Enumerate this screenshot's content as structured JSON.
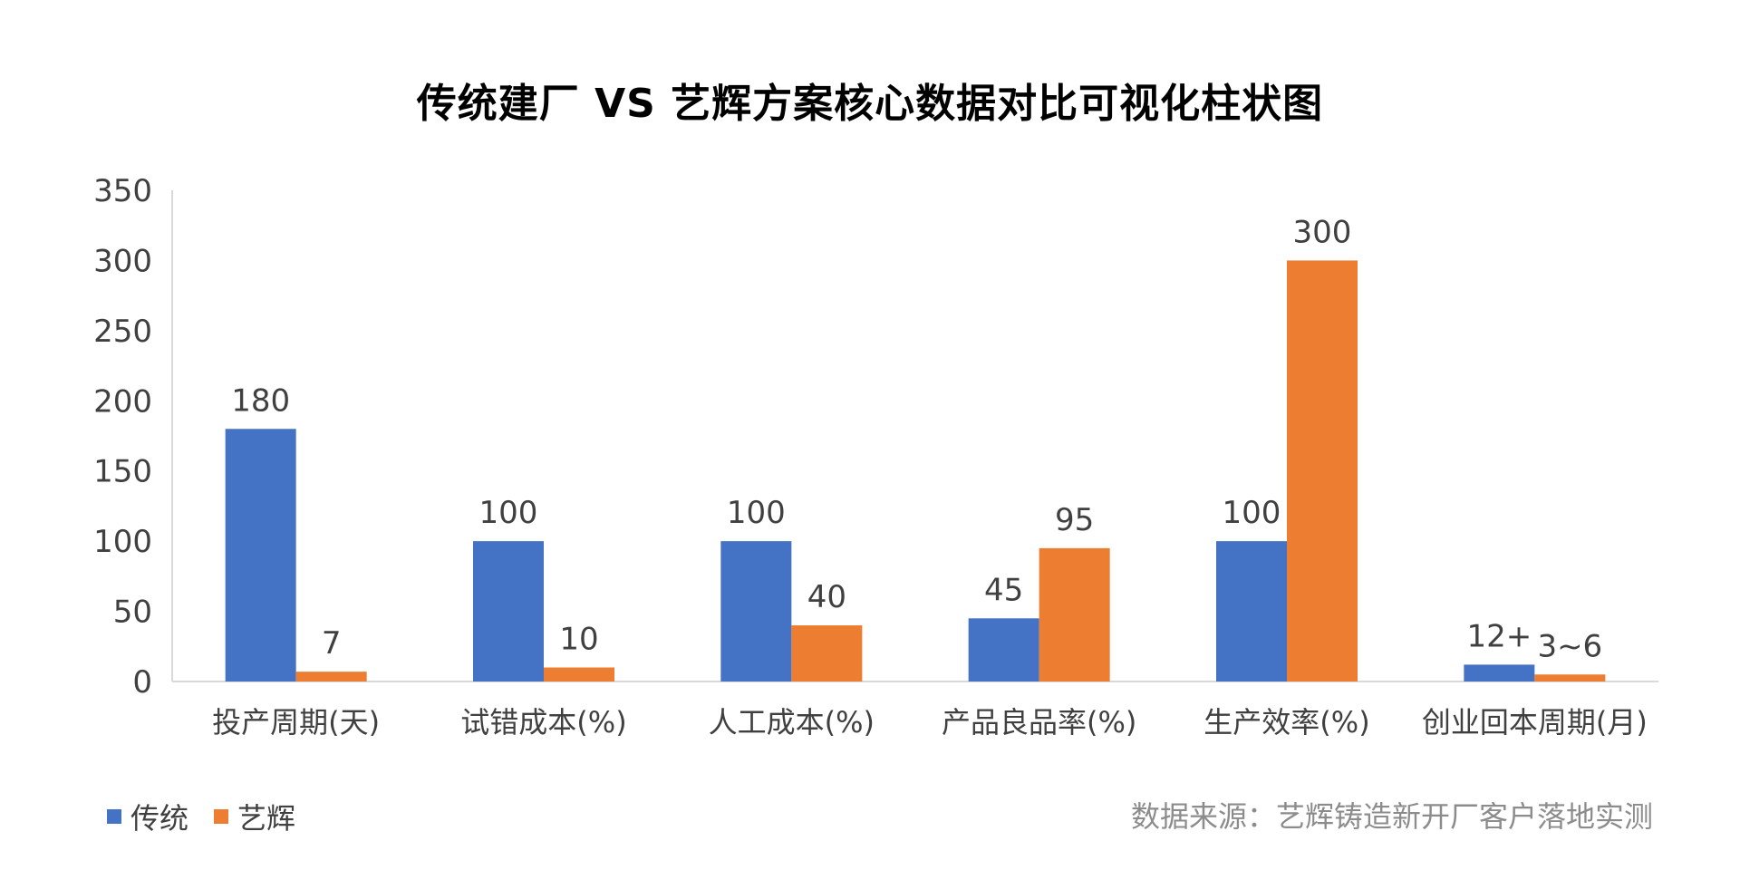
{
  "chart_data": {
    "type": "bar",
    "title": "传统建厂 VS 艺辉方案核心数据对比可视化柱状图",
    "categories": [
      "投产周期(天)",
      "试错成本(%)",
      "人工成本(%)",
      "产品良品率(%)",
      "生产效率(%)",
      "创业回本周期(月)"
    ],
    "series": [
      {
        "name": "传统",
        "color": "#4472C4",
        "values": [
          180,
          100,
          100,
          45,
          100,
          12
        ],
        "labels": [
          "180",
          "100",
          "100",
          "45",
          "100",
          "12+"
        ]
      },
      {
        "name": "艺辉",
        "color": "#ED7D31",
        "values": [
          7,
          10,
          40,
          95,
          300,
          5
        ],
        "labels": [
          "7",
          "10",
          "40",
          "95",
          "300",
          "3~6"
        ]
      }
    ],
    "ylim": [
      0,
      350
    ],
    "yticks": [
      "0",
      "50",
      "100",
      "150",
      "200",
      "250",
      "300",
      "350"
    ],
    "xlabel": "",
    "ylabel": "",
    "grid": false,
    "legend_position": "bottom-left",
    "source_note": "数据来源：艺辉铸造新开厂客户落地实测"
  }
}
